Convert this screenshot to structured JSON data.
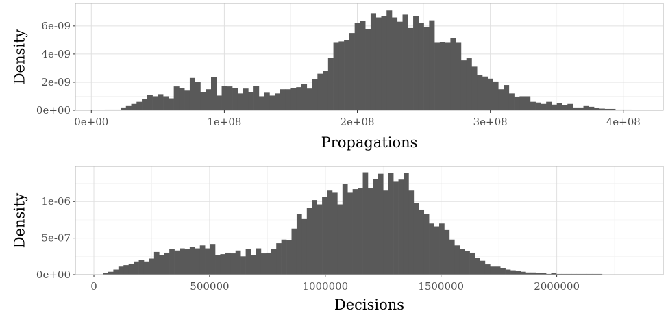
{
  "colors": {
    "bar": "#595959",
    "grid": "#e0e0e0",
    "border": "#b3b3b3",
    "text": "#4d4d4d"
  },
  "chart_data": [
    {
      "type": "histogram",
      "xlabel": "Propagations",
      "ylabel": "Density",
      "xlim": [
        -12000000.0,
        430000000.0
      ],
      "ylim": [
        0,
        7.6e-09
      ],
      "x_ticks": [
        {
          "value": 0,
          "label": "0e+00"
        },
        {
          "value": 100000000,
          "label": "1e+08"
        },
        {
          "value": 200000000,
          "label": "2e+08"
        },
        {
          "value": 300000000,
          "label": "3e+08"
        },
        {
          "value": 400000000,
          "label": "4e+08"
        }
      ],
      "y_ticks": [
        {
          "value": 0,
          "label": "0e+00"
        },
        {
          "value": 2e-09,
          "label": "2e-09"
        },
        {
          "value": 4e-09,
          "label": "4e-09"
        },
        {
          "value": 6e-09,
          "label": "6e-09"
        }
      ],
      "grid": true,
      "bin_start": 10000000,
      "bin_width": 4000000,
      "values": [
        0.05,
        0.05,
        0.05,
        0.2,
        0.3,
        0.45,
        0.6,
        0.8,
        1.1,
        1.0,
        1.15,
        1.0,
        0.85,
        1.7,
        1.6,
        1.4,
        2.3,
        2.0,
        1.3,
        1.5,
        2.35,
        1.05,
        1.75,
        1.7,
        1.6,
        1.2,
        1.55,
        1.3,
        1.75,
        1.0,
        1.25,
        1.05,
        1.2,
        1.5,
        1.5,
        1.6,
        1.65,
        1.85,
        1.55,
        2.2,
        2.6,
        2.8,
        3.75,
        4.8,
        4.9,
        5.0,
        5.5,
        6.2,
        6.35,
        5.75,
        6.9,
        6.6,
        6.7,
        7.1,
        6.6,
        6.3,
        6.8,
        5.85,
        6.7,
        6.2,
        5.9,
        6.4,
        4.8,
        4.85,
        4.8,
        5.15,
        4.8,
        3.55,
        3.7,
        3.1,
        2.5,
        2.4,
        2.25,
        2.05,
        1.5,
        1.8,
        1.2,
        0.95,
        1.0,
        1.0,
        0.6,
        0.55,
        0.45,
        0.6,
        0.4,
        0.5,
        0.35,
        0.45,
        0.2,
        0.2,
        0.3,
        0.25,
        0.15,
        0.12,
        0.1,
        0.1,
        0.05,
        0.05,
        0.05
      ],
      "values_unit": "1e-9"
    },
    {
      "type": "histogram",
      "xlabel": "Decisions",
      "ylabel": "Density",
      "xlim": [
        -80000,
        2460000
      ],
      "ylim": [
        0,
        1.48e-06
      ],
      "x_ticks": [
        {
          "value": 0,
          "label": "0"
        },
        {
          "value": 500000,
          "label": "500000"
        },
        {
          "value": 1000000,
          "label": "1000000"
        },
        {
          "value": 1500000,
          "label": "1500000"
        },
        {
          "value": 2000000,
          "label": "2000000"
        }
      ],
      "y_ticks": [
        {
          "value": 0,
          "label": "0e+00"
        },
        {
          "value": 5e-07,
          "label": "5e-07"
        },
        {
          "value": 1e-06,
          "label": "1e-06"
        }
      ],
      "grid": true,
      "bin_start": 40000,
      "bin_width": 22000,
      "values": [
        0.02,
        0.04,
        0.07,
        0.11,
        0.13,
        0.15,
        0.18,
        0.2,
        0.18,
        0.22,
        0.31,
        0.27,
        0.3,
        0.35,
        0.33,
        0.36,
        0.35,
        0.38,
        0.36,
        0.4,
        0.36,
        0.42,
        0.27,
        0.28,
        0.3,
        0.29,
        0.33,
        0.25,
        0.35,
        0.27,
        0.36,
        0.29,
        0.3,
        0.35,
        0.43,
        0.48,
        0.47,
        0.63,
        0.83,
        0.76,
        0.91,
        1.02,
        0.96,
        1.06,
        1.15,
        1.12,
        0.96,
        1.24,
        1.12,
        1.17,
        1.18,
        1.4,
        1.18,
        1.31,
        1.38,
        1.15,
        1.39,
        1.27,
        1.3,
        1.39,
        1.15,
        0.98,
        0.89,
        0.83,
        0.7,
        0.66,
        0.7,
        0.61,
        0.48,
        0.4,
        0.35,
        0.32,
        0.3,
        0.23,
        0.19,
        0.14,
        0.11,
        0.11,
        0.09,
        0.07,
        0.06,
        0.05,
        0.04,
        0.03,
        0.03,
        0.02,
        0.02,
        0.01,
        0.02,
        0.01,
        0.01,
        0.01,
        0.01,
        0.01,
        0.01,
        0.01,
        0.01,
        0.01
      ],
      "values_unit": "1e-6"
    }
  ]
}
